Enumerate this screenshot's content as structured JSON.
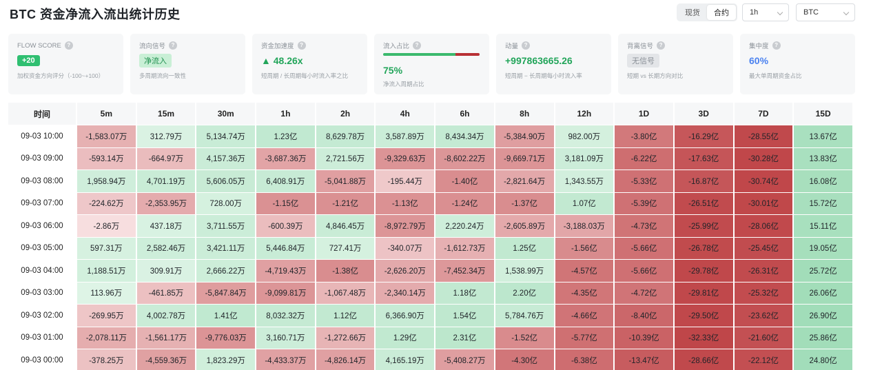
{
  "title": "BTC 资金净流入流出统计历史",
  "market_toggle": {
    "options": [
      "现货",
      "合约"
    ],
    "selected": "合约"
  },
  "interval_select": {
    "value": "1h"
  },
  "symbol_select": {
    "value": "BTC"
  },
  "cards": [
    {
      "label": "FLOW SCORE",
      "value": "+20",
      "note": "加权资金方向评分（-100~+100）"
    },
    {
      "label": "流向信号",
      "value": "净流入",
      "note": "多周期流向一致性"
    },
    {
      "label": "资金加速度",
      "value": "▲ 48.26x",
      "note": "短周期 / 长周期每小时流入率之比"
    },
    {
      "label": "流入占比",
      "value": "75%",
      "inflow_fraction": 0.75,
      "note": "净流入周期占比"
    },
    {
      "label": "动量",
      "value": "+997863665.26",
      "note": "短周期 − 长周期每小时流入率"
    },
    {
      "label": "背离信号",
      "value": "无信号",
      "note": "短期 vs 长期方向对比"
    },
    {
      "label": "集中度",
      "value": "60%",
      "note": "最大单周期资金占比"
    }
  ],
  "table": {
    "headers": [
      "时间",
      "5m",
      "15m",
      "30m",
      "1h",
      "2h",
      "4h",
      "6h",
      "8h",
      "12h",
      "1D",
      "3D",
      "7D",
      "15D"
    ],
    "rows": [
      {
        "time": "09-03 10:00",
        "values": [
          "-1,583.07万",
          "312.79万",
          "5,134.74万",
          "1.23亿",
          "8,629.78万",
          "3,587.89万",
          "8,434.34万",
          "-5,384.90万",
          "982.00万",
          "-3.80亿",
          "-16.29亿",
          "-28.55亿",
          "13.67亿"
        ],
        "nums": [
          -1583.07,
          312.79,
          5134.74,
          12300,
          8629.78,
          3587.89,
          8434.34,
          -5384.9,
          982.0,
          -38000,
          -162900,
          -285500,
          136700
        ]
      },
      {
        "time": "09-03 09:00",
        "values": [
          "-593.14万",
          "-664.97万",
          "4,157.36万",
          "-3,687.36万",
          "2,721.56万",
          "-9,329.63万",
          "-8,602.22万",
          "-9,669.71万",
          "3,181.09万",
          "-6.22亿",
          "-17.63亿",
          "-30.28亿",
          "13.83亿"
        ],
        "nums": [
          -593.14,
          -664.97,
          4157.36,
          -3687.36,
          2721.56,
          -9329.63,
          -8602.22,
          -9669.71,
          3181.09,
          -62200,
          -176300,
          -302800,
          138300
        ]
      },
      {
        "time": "09-03 08:00",
        "values": [
          "1,958.94万",
          "4,701.19万",
          "5,606.05万",
          "6,408.91万",
          "-5,041.88万",
          "-195.44万",
          "-1.40亿",
          "-2,821.64万",
          "1,343.55万",
          "-5.33亿",
          "-16.87亿",
          "-30.74亿",
          "16.08亿"
        ],
        "nums": [
          1958.94,
          4701.19,
          5606.05,
          6408.91,
          -5041.88,
          -195.44,
          -14000,
          -2821.64,
          1343.55,
          -53300,
          -168700,
          -307400,
          160800
        ]
      },
      {
        "time": "09-03 07:00",
        "values": [
          "-224.62万",
          "-2,353.95万",
          "728.00万",
          "-1.15亿",
          "-1.21亿",
          "-1.13亿",
          "-1.24亿",
          "-1.37亿",
          "1.07亿",
          "-5.39亿",
          "-26.51亿",
          "-30.01亿",
          "15.72亿"
        ],
        "nums": [
          -224.62,
          -2353.95,
          728.0,
          -11500,
          -12100,
          -11300,
          -12400,
          -13700,
          10700,
          -53900,
          -265100,
          -300100,
          157200
        ]
      },
      {
        "time": "09-03 06:00",
        "values": [
          "-2.86万",
          "437.18万",
          "3,711.55万",
          "-600.39万",
          "4,846.45万",
          "-8,972.79万",
          "2,220.24万",
          "-2,605.89万",
          "-3,188.03万",
          "-4.73亿",
          "-25.99亿",
          "-28.06亿",
          "15.11亿"
        ],
        "nums": [
          -2.86,
          437.18,
          3711.55,
          -600.39,
          4846.45,
          -8972.79,
          2220.24,
          -2605.89,
          -3188.03,
          -47300,
          -259900,
          -280600,
          151100
        ]
      },
      {
        "time": "09-03 05:00",
        "values": [
          "597.31万",
          "2,582.46万",
          "3,421.11万",
          "5,446.84万",
          "727.41万",
          "-340.07万",
          "-1,612.73万",
          "1.25亿",
          "-1.56亿",
          "-5.66亿",
          "-26.78亿",
          "-25.45亿",
          "19.05亿"
        ],
        "nums": [
          597.31,
          2582.46,
          3421.11,
          5446.84,
          727.41,
          -340.07,
          -1612.73,
          12500,
          -15600,
          -56600,
          -267800,
          -254500,
          190500
        ]
      },
      {
        "time": "09-03 04:00",
        "values": [
          "1,188.51万",
          "309.91万",
          "2,666.22万",
          "-4,719.43万",
          "-1.38亿",
          "-2,626.20万",
          "-7,452.34万",
          "1,538.99万",
          "-4.57亿",
          "-5.66亿",
          "-29.78亿",
          "-26.31亿",
          "25.72亿"
        ],
        "nums": [
          1188.51,
          309.91,
          2666.22,
          -4719.43,
          -13800,
          -2626.2,
          -7452.34,
          1538.99,
          -45700,
          -56600,
          -297800,
          -263100,
          257200
        ]
      },
      {
        "time": "09-03 03:00",
        "values": [
          "113.96万",
          "-461.85万",
          "-5,847.84万",
          "-9,099.81万",
          "-1,067.48万",
          "-2,340.14万",
          "1.18亿",
          "2.20亿",
          "-4.35亿",
          "-4.72亿",
          "-29.81亿",
          "-25.32亿",
          "26.06亿"
        ],
        "nums": [
          113.96,
          -461.85,
          -5847.84,
          -9099.81,
          -1067.48,
          -2340.14,
          11800,
          22000,
          -43500,
          -47200,
          -298100,
          -253200,
          260600
        ]
      },
      {
        "time": "09-03 02:00",
        "values": [
          "-269.95万",
          "4,002.78万",
          "1.41亿",
          "8,032.32万",
          "1.12亿",
          "6,366.90万",
          "1.54亿",
          "5,784.76万",
          "-4.66亿",
          "-8.40亿",
          "-29.50亿",
          "-23.62亿",
          "26.90亿"
        ],
        "nums": [
          -269.95,
          4002.78,
          14100,
          8032.32,
          11200,
          6366.9,
          15400,
          5784.76,
          -46600,
          -84000,
          -295000,
          -236200,
          269000
        ]
      },
      {
        "time": "09-03 01:00",
        "values": [
          "-2,078.11万",
          "-1,561.17万",
          "-9,776.03万",
          "3,160.71万",
          "-1,272.66万",
          "1.29亿",
          "2.31亿",
          "-1.52亿",
          "-5.77亿",
          "-10.39亿",
          "-32.33亿",
          "-21.60亿",
          "25.86亿"
        ],
        "nums": [
          -2078.11,
          -1561.17,
          -9776.03,
          3160.71,
          -1272.66,
          12900,
          23100,
          -15200,
          -57700,
          -103900,
          -323300,
          -216000,
          258600
        ]
      },
      {
        "time": "09-03 00:00",
        "values": [
          "-378.25万",
          "-4,559.36万",
          "1,823.29万",
          "-4,433.37万",
          "-4,826.14万",
          "4,165.19万",
          "-5,408.27万",
          "-4.30亿",
          "-6.38亿",
          "-13.47亿",
          "-28.66亿",
          "-22.12亿",
          "24.80亿"
        ],
        "nums": [
          -378.25,
          -4559.36,
          1823.29,
          -4433.37,
          -4826.14,
          4165.19,
          -5408.27,
          -43000,
          -63800,
          -134700,
          -286600,
          -221200,
          248000
        ]
      }
    ]
  },
  "colors": {
    "positive_light": "#e6f7ec",
    "positive_dark": "#9fdcb7",
    "negative_light": "#f7dfe0",
    "negative_dark": "#bf4548"
  }
}
